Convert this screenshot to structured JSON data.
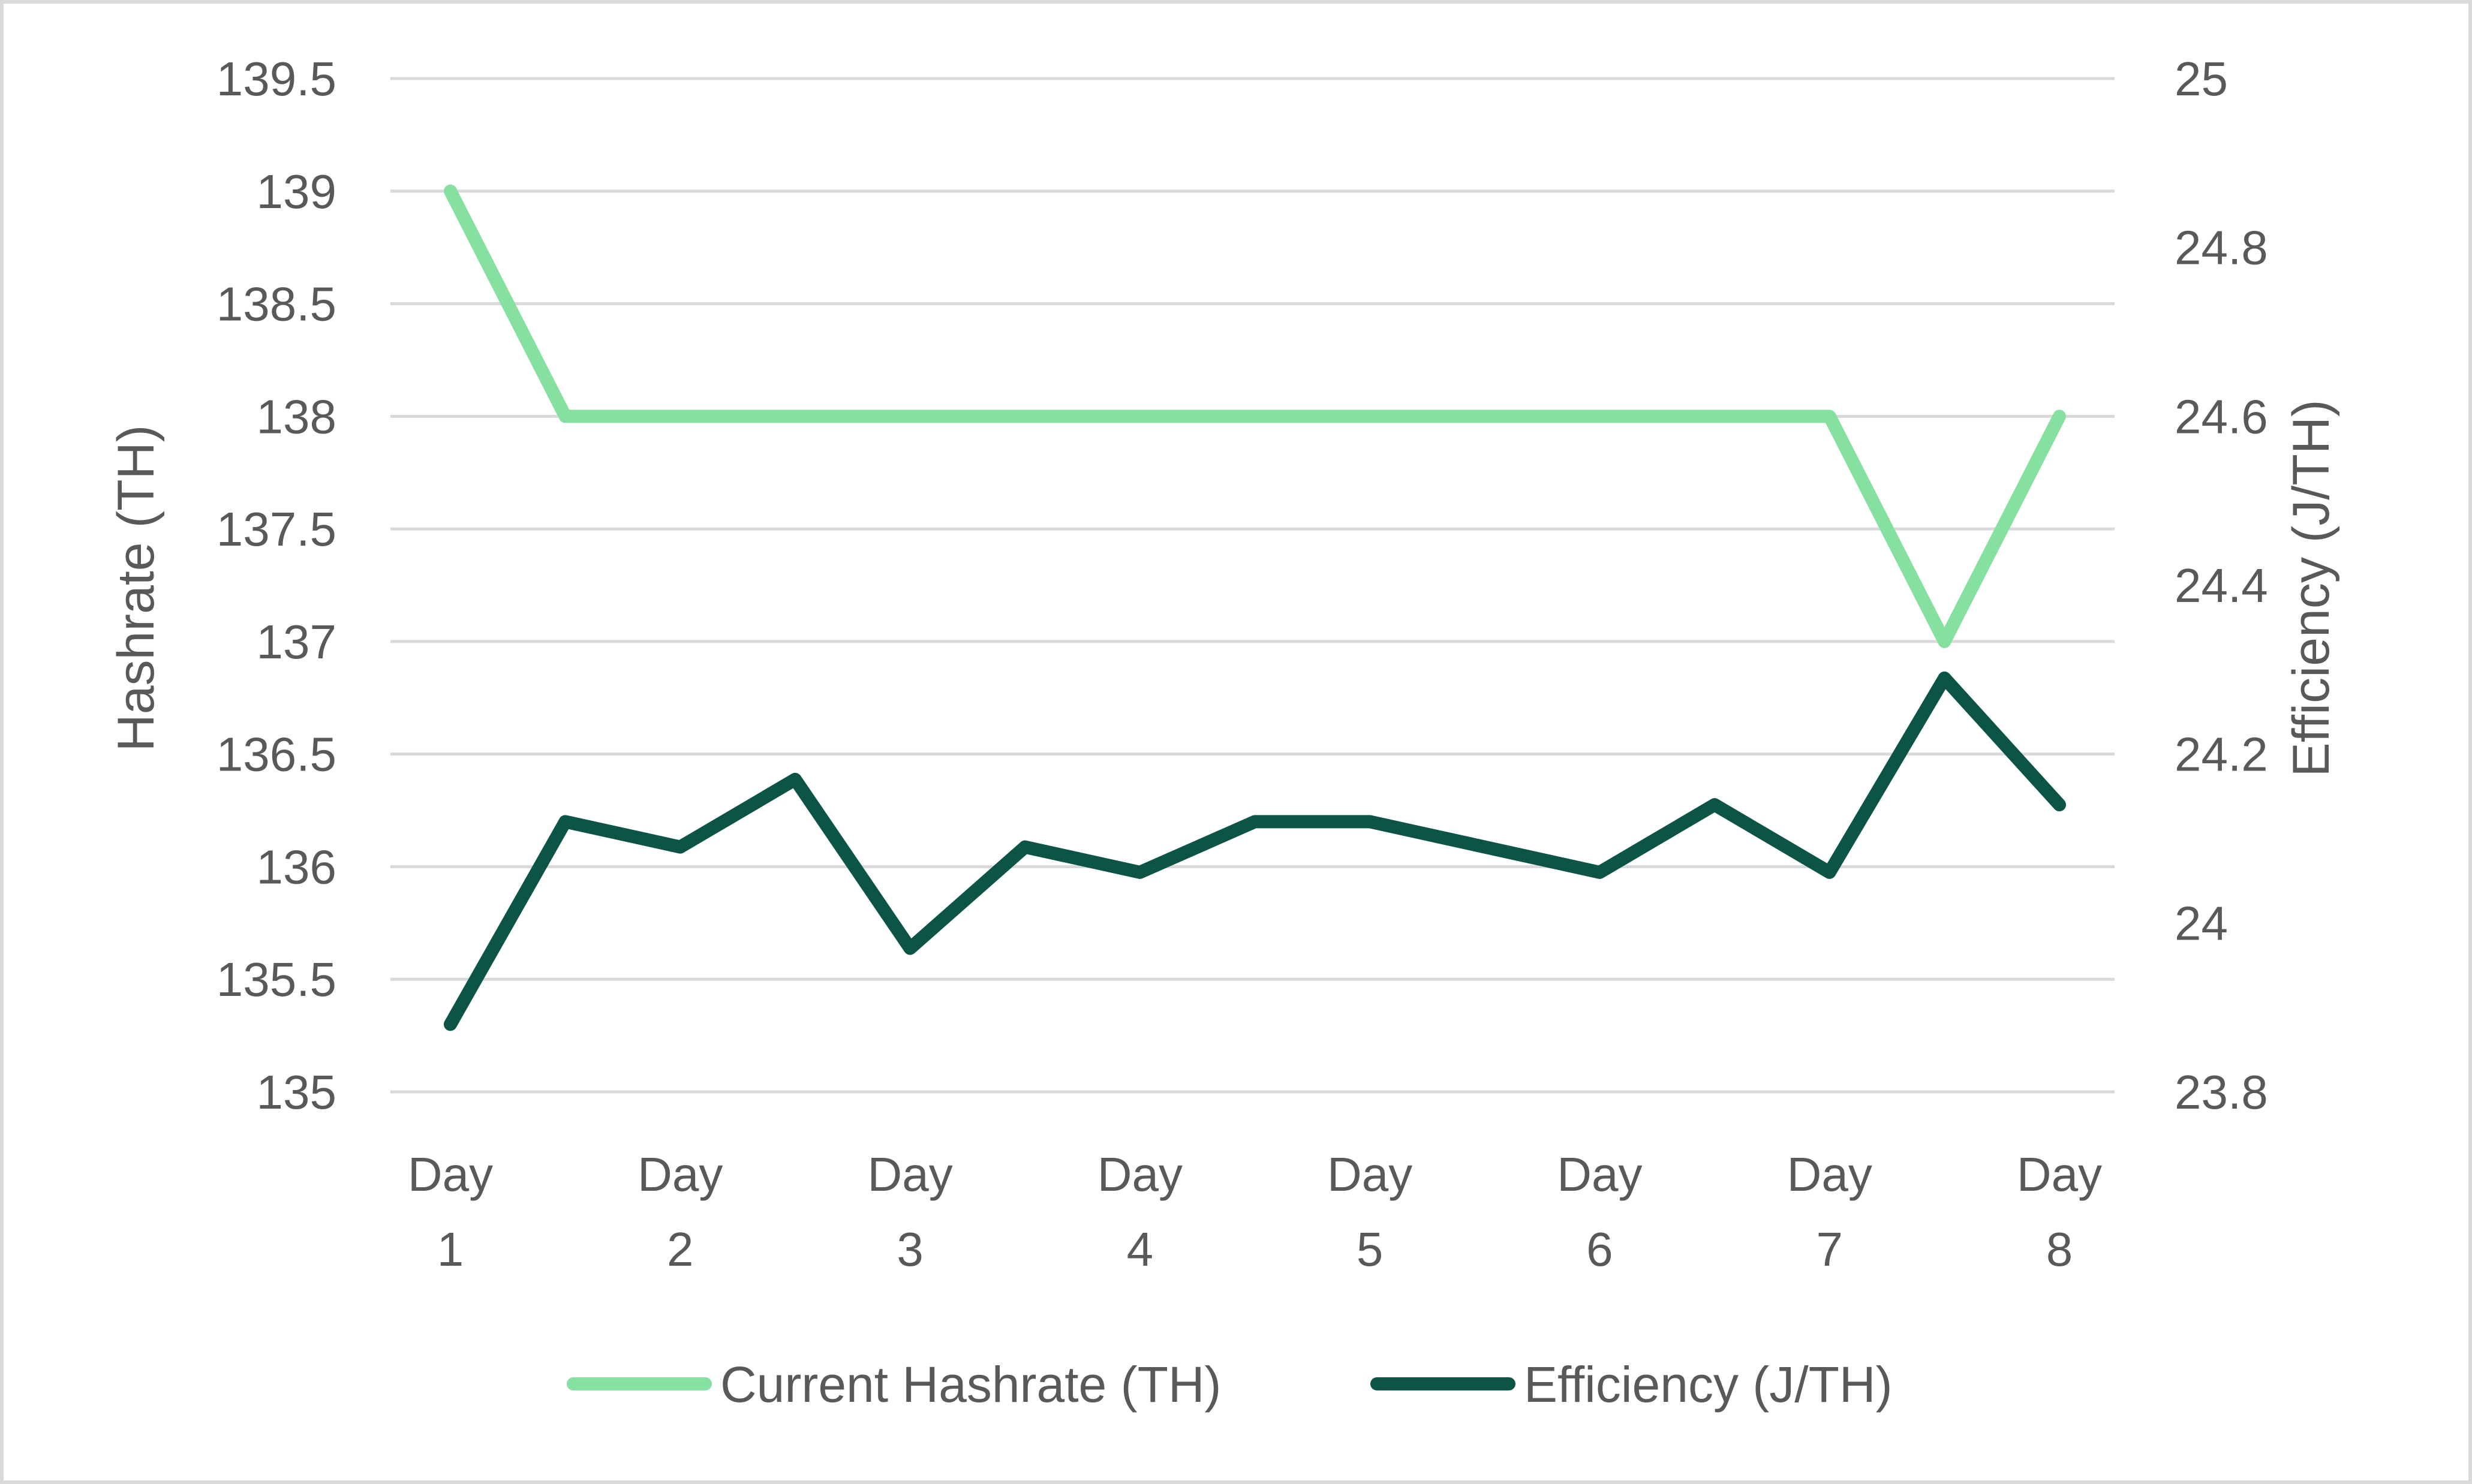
{
  "chart_data": {
    "type": "line",
    "x": [
      "Day 1",
      "",
      "Day 2",
      "",
      "Day 3",
      "",
      "Day 4",
      "",
      "Day 5",
      "",
      "Day 6",
      "",
      "Day 7",
      "",
      "Day 8"
    ],
    "x_tick_labels": [
      {
        "line1": "Day",
        "line2": "1"
      },
      {
        "line1": "Day",
        "line2": "2"
      },
      {
        "line1": "Day",
        "line2": "3"
      },
      {
        "line1": "Day",
        "line2": "4"
      },
      {
        "line1": "Day",
        "line2": "5"
      },
      {
        "line1": "Day",
        "line2": "6"
      },
      {
        "line1": "Day",
        "line2": "7"
      },
      {
        "line1": "Day",
        "line2": "8"
      }
    ],
    "ylabel": "Hashrate (TH)",
    "y2label": "Efficiency (J/TH)",
    "ylim": [
      135,
      139.5
    ],
    "y2lim": [
      23.8,
      25
    ],
    "y_ticks": [
      "135",
      "135.5",
      "136",
      "136.5",
      "137",
      "137.5",
      "138",
      "138.5",
      "139",
      "139.5"
    ],
    "y2_ticks": [
      "23.8",
      "24",
      "24.2",
      "24.4",
      "24.6",
      "24.8",
      "25"
    ],
    "grid": true,
    "legend_position": "bottom",
    "series": [
      {
        "name": "Current Hashrate (TH)",
        "axis": "left",
        "color": "#86e1a1",
        "values": [
          139,
          138,
          138,
          138,
          138,
          138,
          138,
          138,
          138,
          138,
          138,
          138,
          138,
          137,
          138
        ]
      },
      {
        "name": "Efficiency (J/TH)",
        "axis": "right",
        "color": "#0b5446",
        "values": [
          23.88,
          24.12,
          24.09,
          24.17,
          23.97,
          24.09,
          24.06,
          24.12,
          24.12,
          24.09,
          24.06,
          24.14,
          24.06,
          24.29,
          24.14
        ]
      }
    ]
  }
}
